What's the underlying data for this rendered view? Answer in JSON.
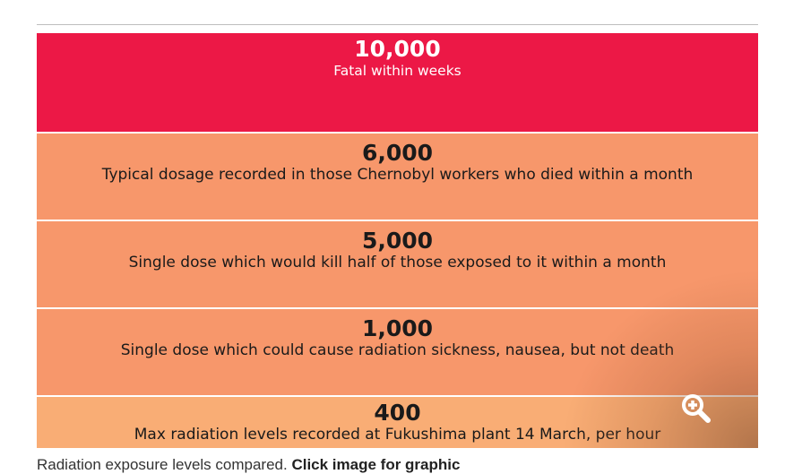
{
  "levels": [
    {
      "value": "10,000",
      "description": "Fatal within weeks",
      "color": "#ec1846"
    },
    {
      "value": "6,000",
      "description": "Typical dosage recorded in those Chernobyl workers who died within a month",
      "color": "#f7976b"
    },
    {
      "value": "5,000",
      "description": "Single dose which would kill half of those exposed to it within a month",
      "color": "#f7976b"
    },
    {
      "value": "1,000",
      "description": "Single dose which could cause radiation sickness, nausea, but not death",
      "color": "#f7976b"
    },
    {
      "value": "400",
      "description": "Max radiation levels recorded at Fukushima plant 14 March, per hour",
      "color": "#f9ad75"
    }
  ],
  "zoom_icon": "zoom-in-magnifier",
  "caption": {
    "text": "Radiation exposure levels compared.",
    "link": "Click image for graphic"
  }
}
